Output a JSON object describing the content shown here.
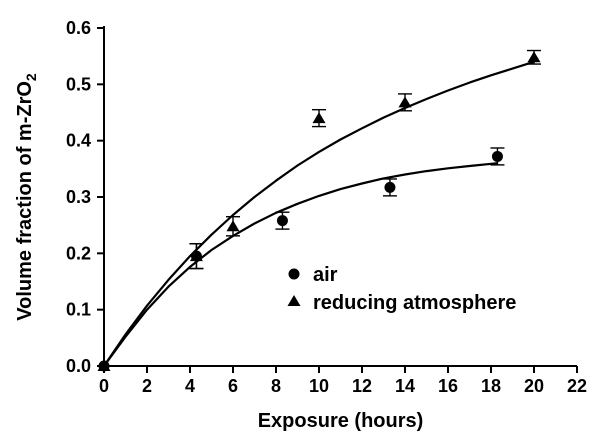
{
  "chart_data": {
    "type": "scatter",
    "title": "",
    "xlabel": "Exposure (hours)",
    "ylabel": "Volume fraction of m-ZrO",
    "ylabel_sub": "2",
    "xlim": [
      0,
      22
    ],
    "ylim": [
      0,
      0.6
    ],
    "xticks": [
      0,
      2,
      4,
      6,
      8,
      10,
      12,
      14,
      16,
      18,
      20,
      22
    ],
    "yticks": [
      0.0,
      0.1,
      0.2,
      0.3,
      0.4,
      0.5,
      0.6
    ],
    "ytick_labels": [
      "0.0",
      "0.1",
      "0.2",
      "0.3",
      "0.4",
      "0.5",
      "0.6"
    ],
    "grid": false,
    "legend_position": "lower-right",
    "series": [
      {
        "name": "air",
        "marker": "circle",
        "color": "#000000",
        "points": [
          {
            "x": 0,
            "y": 0.0,
            "err": 0
          },
          {
            "x": 4.3,
            "y": 0.195,
            "err": 0.022
          },
          {
            "x": 8.3,
            "y": 0.258,
            "err": 0.015
          },
          {
            "x": 13.3,
            "y": 0.317,
            "err": 0.015
          },
          {
            "x": 18.3,
            "y": 0.372,
            "err": 0.015
          }
        ],
        "fit_curve": {
          "x": [
            0,
            1,
            2,
            3,
            4,
            5,
            6,
            7,
            8,
            9,
            10,
            11,
            12,
            13,
            14,
            15,
            16,
            17,
            18.3
          ],
          "y": [
            0.0,
            0.052,
            0.1,
            0.141,
            0.176,
            0.206,
            0.231,
            0.253,
            0.272,
            0.288,
            0.302,
            0.314,
            0.324,
            0.333,
            0.34,
            0.346,
            0.351,
            0.355,
            0.36
          ]
        }
      },
      {
        "name": "reducing atmosphere",
        "marker": "triangle",
        "color": "#000000",
        "points": [
          {
            "x": 0,
            "y": 0.0,
            "err": 0
          },
          {
            "x": 4.3,
            "y": 0.195,
            "err": 0.022
          },
          {
            "x": 6,
            "y": 0.248,
            "err": 0.017
          },
          {
            "x": 10,
            "y": 0.44,
            "err": 0.015
          },
          {
            "x": 14,
            "y": 0.468,
            "err": 0.015
          },
          {
            "x": 20,
            "y": 0.548,
            "err": 0.012
          }
        ],
        "fit_curve": {
          "x": [
            0,
            1,
            2,
            3,
            4,
            5,
            6,
            7,
            8,
            9,
            10,
            11,
            12,
            13,
            14,
            15,
            16,
            17,
            18,
            19,
            20
          ],
          "y": [
            0.0,
            0.056,
            0.107,
            0.153,
            0.195,
            0.233,
            0.268,
            0.3,
            0.329,
            0.356,
            0.38,
            0.402,
            0.422,
            0.441,
            0.458,
            0.474,
            0.489,
            0.503,
            0.516,
            0.528,
            0.54
          ]
        }
      }
    ]
  }
}
